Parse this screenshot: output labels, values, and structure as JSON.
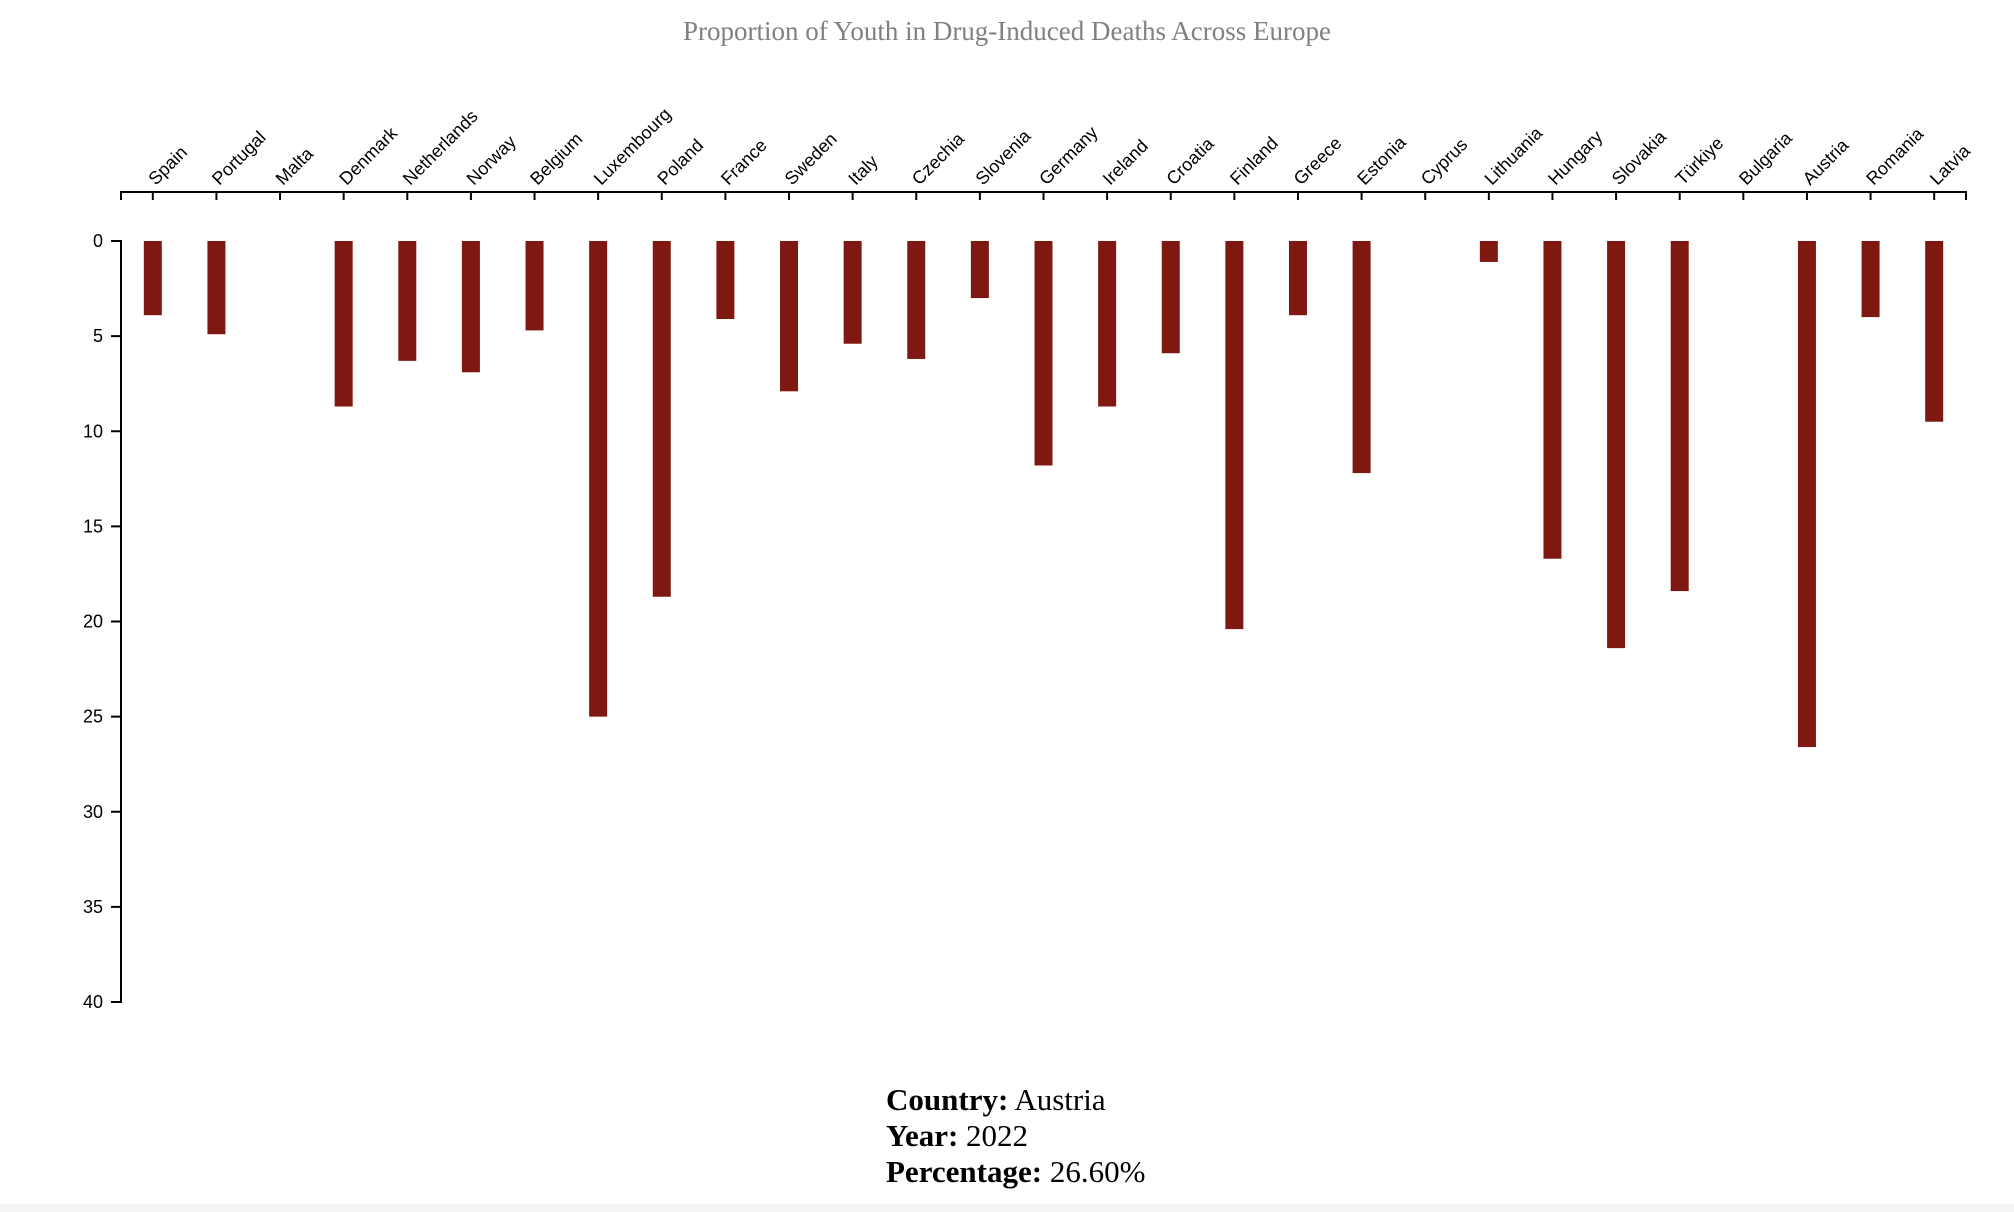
{
  "chart_data": {
    "type": "bar",
    "title": "Proportion of Youth in Drug-Induced Deaths Across Europe",
    "categories": [
      "Spain",
      "Portugal",
      "Malta",
      "Denmark",
      "Netherlands",
      "Norway",
      "Belgium",
      "Luxembourg",
      "Poland",
      "France",
      "Sweden",
      "Italy",
      "Czechia",
      "Slovenia",
      "Germany",
      "Ireland",
      "Croatia",
      "Finland",
      "Greece",
      "Estonia",
      "Cyprus",
      "Lithuania",
      "Hungary",
      "Slovakia",
      "Türkiye",
      "Bulgaria",
      "Austria",
      "Romania",
      "Latvia"
    ],
    "values": [
      3.9,
      4.9,
      0,
      8.7,
      6.3,
      6.9,
      4.7,
      25.0,
      18.7,
      4.1,
      7.9,
      5.4,
      6.2,
      3.0,
      11.8,
      8.7,
      5.9,
      20.4,
      3.9,
      12.2,
      0,
      1.1,
      16.7,
      21.4,
      18.4,
      0,
      26.6,
      4.0,
      9.5
    ],
    "ylim": [
      0,
      40
    ],
    "y_ticks": [
      0,
      5,
      10,
      15,
      20,
      25,
      30,
      35,
      40
    ],
    "x_axis_position": "top",
    "y_axis_inverted": true,
    "bar_color": "#801812",
    "grid": false
  },
  "tooltip": {
    "country_label": "Country:",
    "country_value": "Austria",
    "year_label": "Year:",
    "year_value": "2022",
    "percentage_label": "Percentage:",
    "percentage_value": "26.60%"
  }
}
